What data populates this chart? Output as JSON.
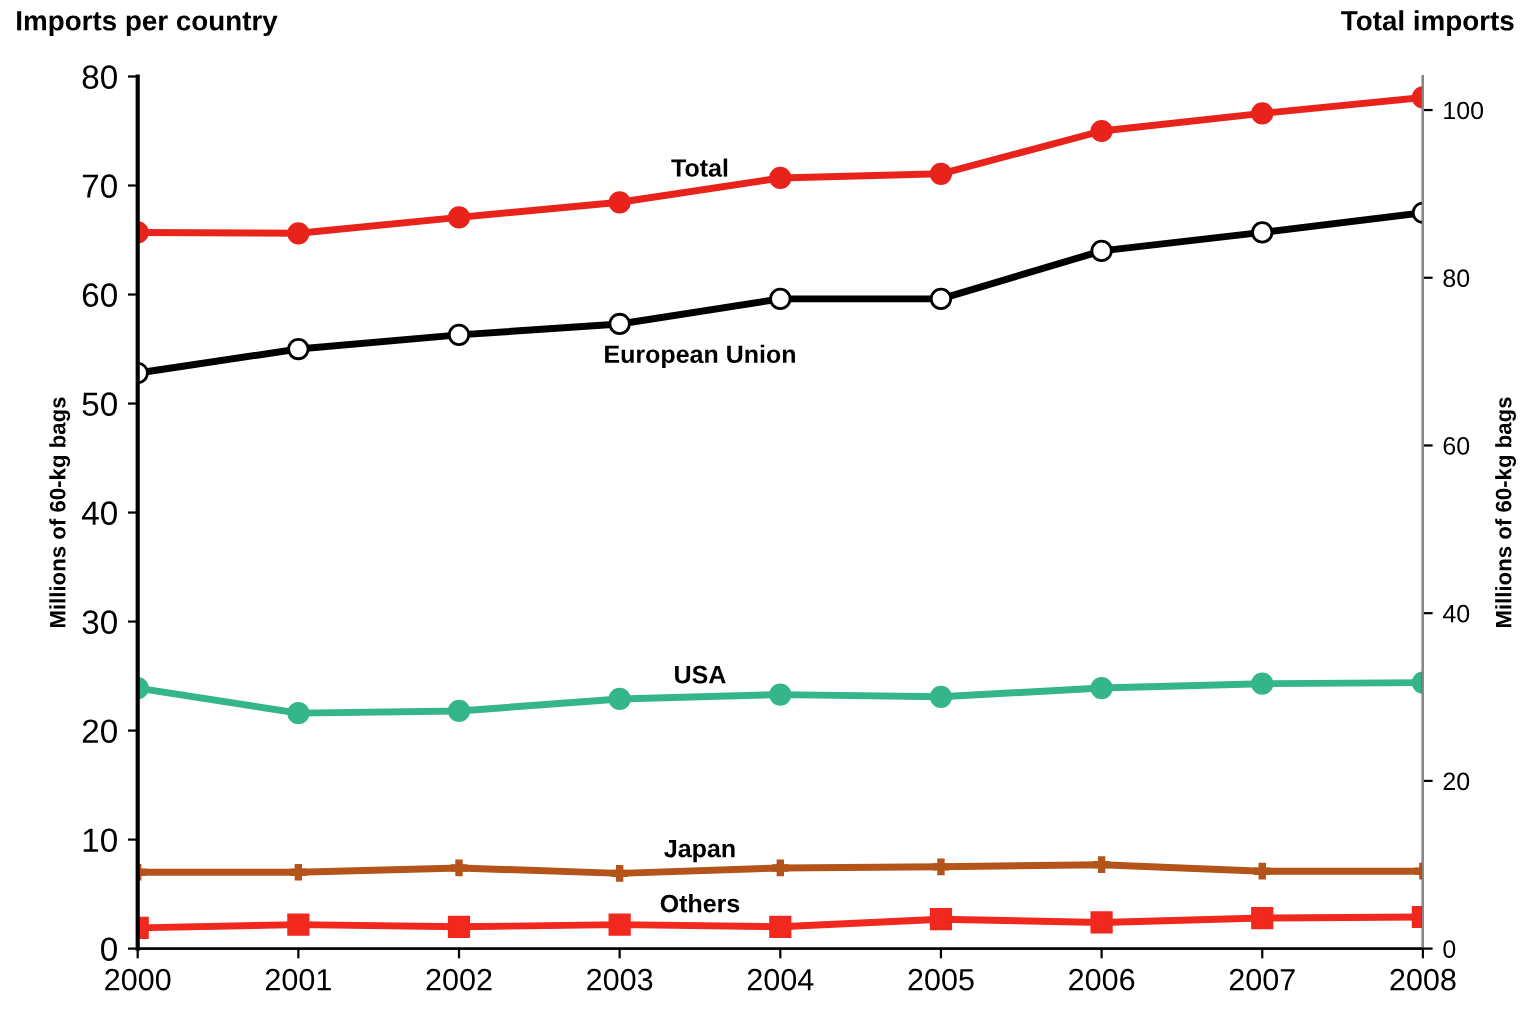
{
  "chart_data": {
    "type": "line",
    "ylabel": "Millions of 60-kg bags",
    "y2label": "Millions of 60-kg bags",
    "annotations": [
      "Imports per country",
      "Total imports"
    ],
    "x": [
      2000,
      2001,
      2002,
      2003,
      2004,
      2005,
      2006,
      2007,
      2008
    ],
    "xlim": [
      2000,
      2008
    ],
    "xticks": [
      2000,
      2001,
      2002,
      2003,
      2004,
      2005,
      2006,
      2007,
      2008
    ],
    "ylim": [
      0,
      80
    ],
    "yticks": [
      0,
      10,
      20,
      30,
      40,
      50,
      60,
      70,
      80
    ],
    "y2lim": [
      0,
      104
    ],
    "y2ticks": [
      0,
      20,
      40,
      60,
      80,
      100
    ],
    "grid": false,
    "legend": false,
    "line_style": "solid",
    "series": [
      {
        "name": "Total",
        "color": "#e8231c",
        "axis": "y2",
        "marker": "circle",
        "values": [
          85.4,
          85.3,
          87.2,
          89.0,
          91.9,
          92.4,
          97.5,
          99.6,
          101.5
        ]
      },
      {
        "name": "European Union",
        "color": "#000000",
        "marker": "circle",
        "values": [
          52.8,
          55.0,
          56.3,
          57.3,
          59.6,
          59.6,
          64.0,
          65.7,
          67.5
        ]
      },
      {
        "name": "USA",
        "color": "#35b58a",
        "marker": "circle",
        "values": [
          23.9,
          21.6,
          21.8,
          22.9,
          23.3,
          23.1,
          23.9,
          24.3,
          24.4
        ]
      },
      {
        "name": "Japan",
        "color": "#b5541a",
        "marker": "cross",
        "values": [
          7.0,
          7.0,
          7.4,
          6.9,
          7.4,
          7.5,
          7.7,
          7.1,
          7.1
        ]
      },
      {
        "name": "Others",
        "color": "#f0281e",
        "marker": "square",
        "values": [
          1.9,
          2.2,
          2.0,
          2.2,
          2.0,
          2.7,
          2.4,
          2.8,
          2.9
        ]
      }
    ]
  }
}
